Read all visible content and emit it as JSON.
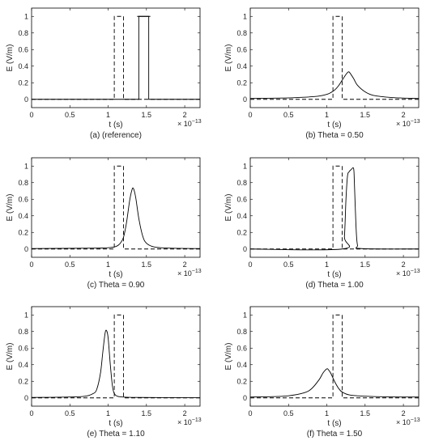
{
  "figure": {
    "y_axis_label": "E (V/m)",
    "x_axis_label": "t (s)",
    "x_exponent_base": "× 10",
    "x_exponent_power": "−13",
    "axis_color": "#000000",
    "line_color": "#000000"
  },
  "chart_data": [
    {
      "type": "line",
      "caption": "(a) (reference)",
      "xlabel": "t (s)",
      "ylabel": "E (V/m)",
      "xlim": [
        0,
        2.2
      ],
      "ylim": [
        -0.1,
        1.1
      ],
      "x_ticks": [
        0,
        0.5,
        1,
        1.5,
        2
      ],
      "x_tick_labels": [
        "0",
        "0.5",
        "1",
        "1.5",
        "2"
      ],
      "y_ticks": [
        0,
        0.2,
        0.4,
        0.6,
        0.8,
        1
      ],
      "y_tick_labels": [
        "0",
        "0.2",
        "0.4",
        "0.6",
        "0.8",
        "1"
      ],
      "x_multiplier": "10^-13",
      "series": [
        {
          "style": "dashed",
          "x": [
            0,
            1.08,
            1.08,
            1.2,
            1.2,
            2.2
          ],
          "y": [
            0,
            0,
            1,
            1,
            0,
            0
          ]
        },
        {
          "style": "solid",
          "x": [
            0,
            1.4,
            1.4,
            1.53,
            1.53,
            2.2
          ],
          "y": [
            0,
            0,
            1,
            1,
            0,
            0
          ]
        }
      ]
    },
    {
      "type": "line",
      "caption": "(b) Theta = 0.50",
      "xlabel": "t (s)",
      "ylabel": "E (V/m)",
      "xlim": [
        0,
        2.2
      ],
      "ylim": [
        -0.1,
        1.1
      ],
      "x_ticks": [
        0,
        0.5,
        1,
        1.5,
        2
      ],
      "x_tick_labels": [
        "0",
        "0.5",
        "1",
        "1.5",
        "2"
      ],
      "y_ticks": [
        0,
        0.2,
        0.4,
        0.6,
        0.8,
        1
      ],
      "y_tick_labels": [
        "0",
        "0.2",
        "0.4",
        "0.6",
        "0.8",
        "1"
      ],
      "x_multiplier": "10^-13",
      "series": [
        {
          "style": "dashed",
          "x": [
            0,
            1.08,
            1.08,
            1.2,
            1.2,
            2.2
          ],
          "y": [
            0,
            0,
            1,
            1,
            0,
            0
          ]
        },
        {
          "style": "solid",
          "x": [
            0,
            0.4,
            0.7,
            0.9,
            1.0,
            1.05,
            1.1,
            1.15,
            1.2,
            1.25,
            1.28,
            1.3,
            1.35,
            1.4,
            1.5,
            1.6,
            1.8,
            2.0,
            2.2
          ],
          "y": [
            0.01,
            0.015,
            0.025,
            0.04,
            0.06,
            0.08,
            0.11,
            0.16,
            0.23,
            0.3,
            0.33,
            0.32,
            0.25,
            0.17,
            0.09,
            0.05,
            0.025,
            0.015,
            0.01
          ]
        }
      ]
    },
    {
      "type": "line",
      "caption": "(c) Theta = 0.90",
      "xlabel": "t (s)",
      "ylabel": "E (V/m)",
      "xlim": [
        0,
        2.2
      ],
      "ylim": [
        -0.1,
        1.1
      ],
      "x_ticks": [
        0,
        0.5,
        1,
        1.5,
        2
      ],
      "x_tick_labels": [
        "0",
        "0.5",
        "1",
        "1.5",
        "2"
      ],
      "y_ticks": [
        0,
        0.2,
        0.4,
        0.6,
        0.8,
        1
      ],
      "y_tick_labels": [
        "0",
        "0.2",
        "0.4",
        "0.6",
        "0.8",
        "1"
      ],
      "x_multiplier": "10^-13",
      "series": [
        {
          "style": "dashed",
          "x": [
            0,
            1.08,
            1.08,
            1.2,
            1.2,
            2.2
          ],
          "y": [
            0,
            0,
            1,
            1,
            0,
            0
          ]
        },
        {
          "style": "solid",
          "x": [
            0,
            0.8,
            1.0,
            1.1,
            1.15,
            1.2,
            1.24,
            1.28,
            1.31,
            1.33,
            1.36,
            1.4,
            1.45,
            1.5,
            1.6,
            1.8,
            2.2
          ],
          "y": [
            0.005,
            0.01,
            0.015,
            0.03,
            0.06,
            0.14,
            0.32,
            0.58,
            0.71,
            0.73,
            0.62,
            0.37,
            0.16,
            0.07,
            0.025,
            0.01,
            0.005
          ]
        }
      ]
    },
    {
      "type": "line",
      "caption": "(d) Theta = 1.00",
      "xlabel": "t (s)",
      "ylabel": "E (V/m)",
      "xlim": [
        0,
        2.2
      ],
      "ylim": [
        -0.1,
        1.1
      ],
      "x_ticks": [
        0,
        0.5,
        1,
        1.5,
        2
      ],
      "x_tick_labels": [
        "0",
        "0.5",
        "1",
        "1.5",
        "2"
      ],
      "y_ticks": [
        0,
        0.2,
        0.4,
        0.6,
        0.8,
        1
      ],
      "y_tick_labels": [
        "0",
        "0.2",
        "0.4",
        "0.6",
        "0.8",
        "1"
      ],
      "x_multiplier": "10^-13",
      "series": [
        {
          "style": "dashed",
          "x": [
            0,
            1.08,
            1.08,
            1.2,
            1.2,
            2.2
          ],
          "y": [
            0,
            0,
            1,
            1,
            0,
            0
          ]
        },
        {
          "style": "solid",
          "x": [
            0,
            1.2,
            1.23,
            1.25,
            1.27,
            1.29,
            1.32,
            1.35,
            1.36,
            1.38,
            1.4,
            1.45,
            2.2
          ],
          "y": [
            0,
            0,
            0.15,
            0.6,
            0.88,
            0.93,
            0.96,
            0.97,
            0.8,
            0.3,
            0.05,
            0.005,
            0
          ]
        }
      ]
    },
    {
      "type": "line",
      "caption": "(e) Theta = 1.10",
      "xlabel": "t (s)",
      "ylabel": "E (V/m)",
      "xlim": [
        0,
        2.2
      ],
      "ylim": [
        -0.1,
        1.1
      ],
      "x_ticks": [
        0,
        0.5,
        1,
        1.5,
        2
      ],
      "x_tick_labels": [
        "0",
        "0.5",
        "1",
        "1.5",
        "2"
      ],
      "y_ticks": [
        0,
        0.2,
        0.4,
        0.6,
        0.8,
        1
      ],
      "y_tick_labels": [
        "0",
        "0.2",
        "0.4",
        "0.6",
        "0.8",
        "1"
      ],
      "x_multiplier": "10^-13",
      "series": [
        {
          "style": "dashed",
          "x": [
            0,
            1.08,
            1.08,
            1.2,
            1.2,
            2.2
          ],
          "y": [
            0,
            0,
            1,
            1,
            0,
            0
          ]
        },
        {
          "style": "solid",
          "x": [
            0,
            0.5,
            0.7,
            0.8,
            0.85,
            0.9,
            0.93,
            0.96,
            0.98,
            1.0,
            1.03,
            1.06,
            1.1,
            1.2,
            1.4,
            2.2
          ],
          "y": [
            0.005,
            0.01,
            0.02,
            0.05,
            0.1,
            0.3,
            0.55,
            0.78,
            0.81,
            0.72,
            0.38,
            0.12,
            0.03,
            0.01,
            0.005,
            0.002
          ]
        }
      ]
    },
    {
      "type": "line",
      "caption": "(f) Theta = 1.50",
      "xlabel": "t (s)",
      "ylabel": "E (V/m)",
      "xlim": [
        0,
        2.2
      ],
      "ylim": [
        -0.1,
        1.1
      ],
      "x_ticks": [
        0,
        0.5,
        1,
        1.5,
        2
      ],
      "x_tick_labels": [
        "0",
        "0.5",
        "1",
        "1.5",
        "2"
      ],
      "y_ticks": [
        0,
        0.2,
        0.4,
        0.6,
        0.8,
        1
      ],
      "y_tick_labels": [
        "0",
        "0.2",
        "0.4",
        "0.6",
        "0.8",
        "1"
      ],
      "x_multiplier": "10^-13",
      "series": [
        {
          "style": "dashed",
          "x": [
            0,
            1.08,
            1.08,
            1.2,
            1.2,
            2.2
          ],
          "y": [
            0,
            0,
            1,
            1,
            0,
            0
          ]
        },
        {
          "style": "solid",
          "x": [
            0,
            0.3,
            0.5,
            0.7,
            0.8,
            0.9,
            0.95,
            1.0,
            1.02,
            1.05,
            1.1,
            1.15,
            1.2,
            1.3,
            1.5,
            1.8,
            2.2
          ],
          "y": [
            0.01,
            0.015,
            0.025,
            0.06,
            0.11,
            0.22,
            0.3,
            0.35,
            0.34,
            0.3,
            0.2,
            0.12,
            0.07,
            0.035,
            0.02,
            0.012,
            0.01
          ]
        }
      ]
    }
  ]
}
